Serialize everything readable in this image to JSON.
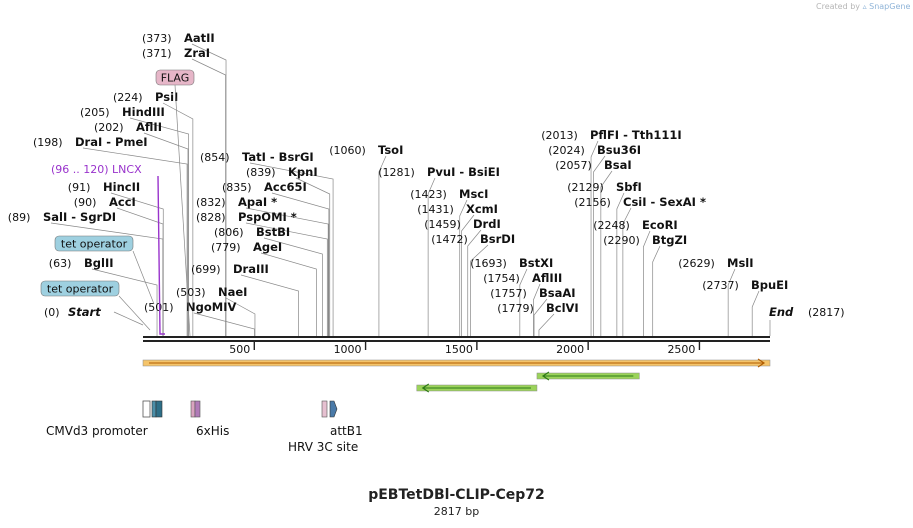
{
  "credit": {
    "prefix": "Created by",
    "brand": "SnapGene"
  },
  "plasmid": {
    "name": "pEBTetDBl-CLIP-Cep72",
    "length_label": "2817 bp",
    "length_bp": 2817
  },
  "colors": {
    "backbone": "#222222",
    "site_line": "#888888",
    "label_text": "#111111",
    "lncx": "#9933cc",
    "tet_operator_fill": "#9ed0e0",
    "flag_fill": "#e6b6c8",
    "orange_bar": "#f5c46a",
    "green_arrow": "#9bd35a"
  },
  "ends": {
    "start": "Start",
    "end": "End",
    "start_pos": "(0)",
    "end_pos": "(2817)"
  },
  "sites": [
    {
      "name": "AatII",
      "pos": 373,
      "label": "(373)",
      "star": false
    },
    {
      "name": "ZraI",
      "pos": 371,
      "label": "(371)",
      "star": false
    },
    {
      "name": "PsiI",
      "pos": 224,
      "label": "(224)",
      "star": false
    },
    {
      "name": "HindIII",
      "pos": 205,
      "label": "(205)",
      "star": false
    },
    {
      "name": "AflII",
      "pos": 202,
      "label": "(202)",
      "star": false
    },
    {
      "name": "DraI - PmeI",
      "pos": 198,
      "label": "(198)",
      "star": false
    },
    {
      "name": "HincII",
      "pos": 91,
      "label": "(91)",
      "star": false
    },
    {
      "name": "AccI",
      "pos": 90,
      "label": "(90)",
      "star": false
    },
    {
      "name": "SalI - SgrDI",
      "pos": 89,
      "label": "(89)",
      "star": false
    },
    {
      "name": "BglII",
      "pos": 63,
      "label": "(63)",
      "star": false
    },
    {
      "name": "NaeI",
      "pos": 503,
      "label": "(503)",
      "star": false
    },
    {
      "name": "NgoMIV",
      "pos": 501,
      "label": "(501)",
      "star": false
    },
    {
      "name": "TatI - BsrGI",
      "pos": 854,
      "label": "(854)",
      "star": false
    },
    {
      "name": "KpnI",
      "pos": 839,
      "label": "(839)",
      "star": false
    },
    {
      "name": "Acc65I",
      "pos": 835,
      "label": "(835)",
      "star": false
    },
    {
      "name": "ApaI",
      "pos": 832,
      "label": "(832)",
      "star": true
    },
    {
      "name": "PspOMI",
      "pos": 828,
      "label": "(828)",
      "star": true
    },
    {
      "name": "BstBI",
      "pos": 806,
      "label": "(806)",
      "star": false
    },
    {
      "name": "AgeI",
      "pos": 779,
      "label": "(779)",
      "star": false
    },
    {
      "name": "DraIII",
      "pos": 699,
      "label": "(699)",
      "star": false
    },
    {
      "name": "TsoI",
      "pos": 1060,
      "label": "(1060)",
      "star": false
    },
    {
      "name": "PvuI - BsiEI",
      "pos": 1281,
      "label": "(1281)",
      "star": false
    },
    {
      "name": "MscI",
      "pos": 1423,
      "label": "(1423)",
      "star": false
    },
    {
      "name": "XcmI",
      "pos": 1431,
      "label": "(1431)",
      "star": false
    },
    {
      "name": "DrdI",
      "pos": 1459,
      "label": "(1459)",
      "star": false
    },
    {
      "name": "BsrDI",
      "pos": 1472,
      "label": "(1472)",
      "star": false
    },
    {
      "name": "BstXI",
      "pos": 1693,
      "label": "(1693)",
      "star": false
    },
    {
      "name": "AflIII",
      "pos": 1754,
      "label": "(1754)",
      "star": false
    },
    {
      "name": "BsaAI",
      "pos": 1757,
      "label": "(1757)",
      "star": false
    },
    {
      "name": "BclVI",
      "pos": 1779,
      "label": "(1779)",
      "star": false
    },
    {
      "name": "PflFI - Tth111I",
      "pos": 2013,
      "label": "(2013)",
      "star": false
    },
    {
      "name": "Bsu36I",
      "pos": 2024,
      "label": "(2024)",
      "star": false
    },
    {
      "name": "BsaI",
      "pos": 2057,
      "label": "(2057)",
      "star": false
    },
    {
      "name": "SbfI",
      "pos": 2129,
      "label": "(2129)",
      "star": false
    },
    {
      "name": "CsiI - SexAI",
      "pos": 2156,
      "label": "(2156)",
      "star": true
    },
    {
      "name": "EcoRI",
      "pos": 2248,
      "label": "(2248)",
      "star": false
    },
    {
      "name": "BtgZI",
      "pos": 2290,
      "label": "(2290)",
      "star": false
    },
    {
      "name": "MslI",
      "pos": 2629,
      "label": "(2629)",
      "star": false
    },
    {
      "name": "BpuEI",
      "pos": 2737,
      "label": "(2737)",
      "star": false
    }
  ],
  "feature_labels": [
    {
      "text": "FLAG",
      "kind": "box",
      "fill": "#e6b6c8"
    },
    {
      "text": "tet operator",
      "kind": "box",
      "fill": "#9ed0e0"
    },
    {
      "text": "tet operator",
      "kind": "box",
      "fill": "#9ed0e0"
    },
    {
      "text": "(96 .. 120)  LNCX",
      "kind": "purple_text"
    }
  ],
  "ruler_ticks": [
    {
      "value": 500,
      "label": "500"
    },
    {
      "value": 1000,
      "label": "1000"
    },
    {
      "value": 1500,
      "label": "1500"
    },
    {
      "value": 2000,
      "label": "2000"
    },
    {
      "value": 2500,
      "label": "2500"
    }
  ],
  "lower_features": [
    {
      "text": "CMVd3 promoter",
      "start": 0,
      "end": 60
    },
    {
      "text": "6xHis",
      "start": 210,
      "end": 250
    },
    {
      "text": "HRV 3C site",
      "start": 800,
      "end": 830
    },
    {
      "text": "attB1",
      "start": 830,
      "end": 860
    }
  ],
  "arrows": [
    {
      "kind": "orange",
      "direction": "forward",
      "start": 0,
      "end": 2817
    },
    {
      "kind": "green",
      "direction": "reverse",
      "start": 1230,
      "end": 1770
    },
    {
      "kind": "green",
      "direction": "reverse",
      "start": 1770,
      "end": 2230
    }
  ]
}
